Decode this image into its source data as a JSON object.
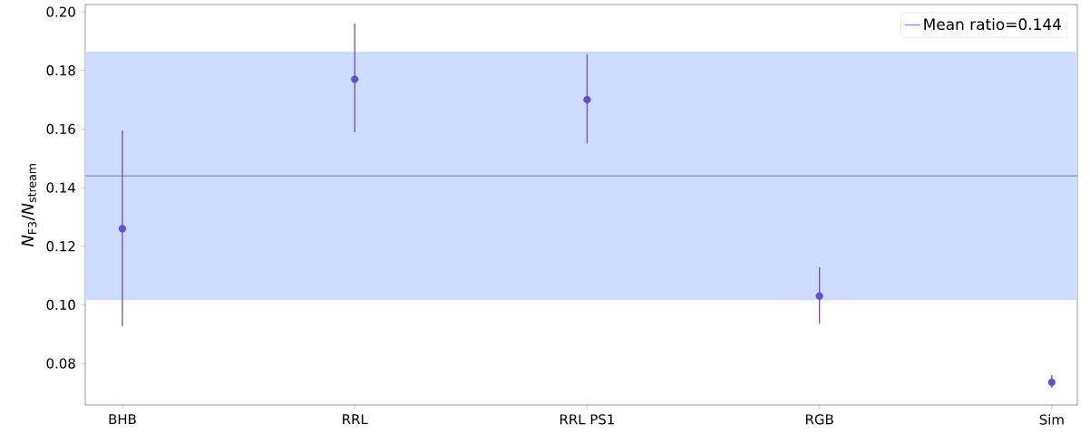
{
  "chart_data": {
    "type": "scatter",
    "ylabel": "*N*$_{F3}$/*N*$_{stream}$",
    "categories": [
      "BHB",
      "RRL",
      "RRL PS1",
      "RGB",
      "Sim"
    ],
    "values": [
      0.126,
      0.177,
      0.17,
      0.103,
      0.0735
    ],
    "errors": [
      [
        0.0927,
        0.1595
      ],
      [
        0.1589,
        0.196
      ],
      [
        0.1551,
        0.1855
      ],
      [
        0.0936,
        0.1128
      ],
      [
        0.0716,
        0.076
      ]
    ],
    "color": "#6650c8",
    "ylim": [
      0.0658,
      0.2025
    ],
    "yticks": [
      {
        "value": 0.08,
        "label": "0.08"
      },
      {
        "value": 0.1,
        "label": "0.10"
      },
      {
        "value": 0.12,
        "label": "0.12"
      },
      {
        "value": 0.14,
        "label": "0.14"
      },
      {
        "value": 0.16,
        "label": "0.16"
      },
      {
        "value": 0.18,
        "label": "0.18"
      },
      {
        "value": 0.2,
        "label": "0.20"
      }
    ],
    "ref_lines": [
      {
        "axis": "y",
        "value": 0.144,
        "label": "Mean ratio=0.144",
        "color": "#6e8ff0"
      }
    ],
    "bands": [
      {
        "axis": "y",
        "from": 0.1016,
        "to": 0.1864,
        "color": "#d0dcfd"
      }
    ],
    "legend": "top right"
  }
}
